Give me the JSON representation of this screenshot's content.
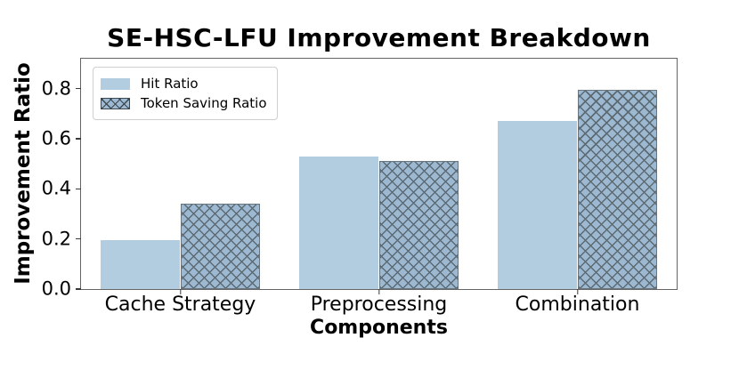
{
  "chart_data": {
    "type": "bar",
    "title": "SE-HSC-LFU Improvement Breakdown",
    "xlabel": "Components",
    "ylabel": "Improvement Ratio",
    "categories": [
      "Cache Strategy",
      "Preprocessing",
      "Combination"
    ],
    "series": [
      {
        "name": "Hit Ratio",
        "values": [
          0.195,
          0.53,
          0.67
        ],
        "color": "#b3cde0",
        "hatch": "none",
        "edge_color": "none"
      },
      {
        "name": "Token Saving Ratio",
        "values": [
          0.34,
          0.51,
          0.795
        ],
        "color": "#9db9d1",
        "hatch": "xx",
        "edge_color": "#68747e"
      }
    ],
    "ylim": [
      0,
      0.92
    ],
    "yticks": [
      0.0,
      0.2,
      0.4,
      0.6,
      0.8
    ],
    "ytick_labels": [
      "0.0",
      "0.2",
      "0.4",
      "0.6",
      "0.8"
    ],
    "bar_width_fraction": 0.1334,
    "legend_position": "upper left",
    "grid": false,
    "background_color": "#ffffff",
    "spine_color": "#656565"
  }
}
